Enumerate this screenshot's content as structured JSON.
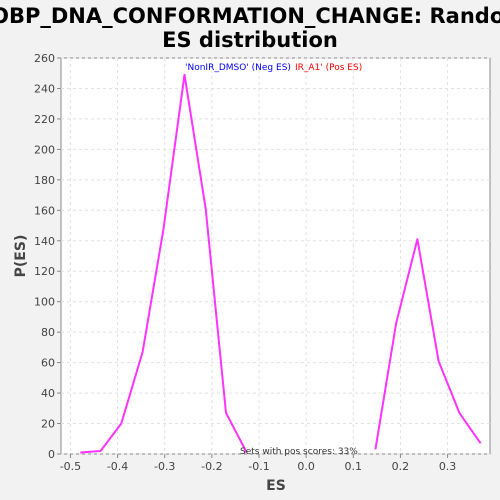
{
  "chart_data": {
    "type": "line",
    "title_lines": [
      "GOBP_DNA_CONFORMATION_CHANGE: Random",
      "ES distribution"
    ],
    "xlabel": "ES",
    "ylabel": "P(ES)",
    "xlim": [
      -0.52,
      0.39
    ],
    "ylim": [
      0,
      260
    ],
    "x_ticks": [
      -0.5,
      -0.4,
      -0.3,
      -0.2,
      -0.1,
      0.0,
      0.1,
      0.2,
      0.3
    ],
    "x_tick_labels": [
      "-0.5",
      "-0.4",
      "-0.3",
      "-0.2",
      "-0.1",
      "0.0",
      "0.1",
      "0.2",
      "0.3"
    ],
    "y_ticks": [
      0,
      20,
      40,
      60,
      80,
      100,
      120,
      140,
      160,
      180,
      200,
      220,
      240,
      260
    ],
    "grid": true,
    "series": [
      {
        "name": "",
        "color": "#ff33ff",
        "points": [
          [
            -0.479,
            1
          ],
          [
            -0.436,
            2
          ],
          [
            -0.392,
            20
          ],
          [
            -0.347,
            67
          ],
          [
            -0.303,
            147
          ],
          [
            -0.258,
            249
          ],
          [
            -0.213,
            161
          ],
          [
            -0.17,
            27
          ],
          [
            -0.126,
            1
          ]
        ]
      },
      {
        "name": "",
        "color": "#ff33ff",
        "points": [
          [
            0.147,
            3
          ],
          [
            0.191,
            86
          ],
          [
            0.236,
            141
          ],
          [
            0.281,
            61
          ],
          [
            0.325,
            27
          ],
          [
            0.37,
            7
          ]
        ]
      }
    ],
    "legend": {
      "placement": "top-center",
      "neg_label": "'NonIR_DMSO' (Neg ES)",
      "neg_color": "#0000ff",
      "pos_label": "IR_A1' (Pos ES)",
      "pos_color": "#ff0000"
    },
    "annotation": "Sets with pos scores: 33%"
  }
}
